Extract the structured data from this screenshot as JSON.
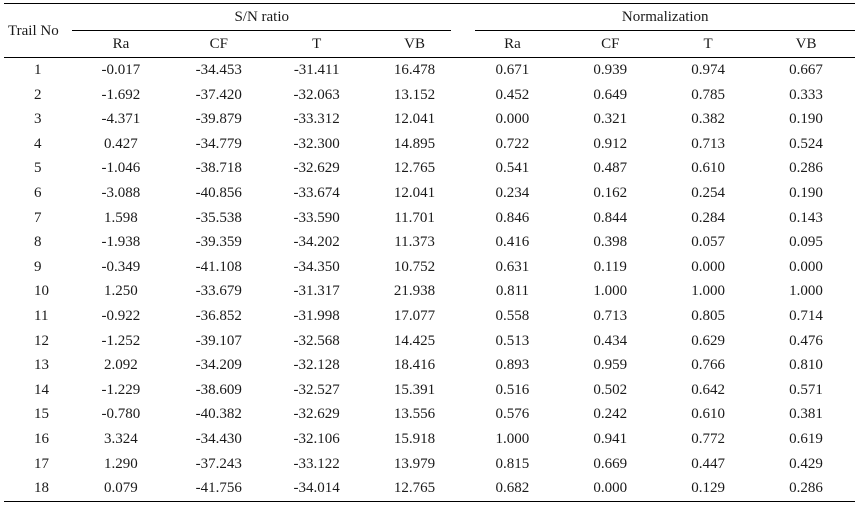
{
  "table": {
    "corner_header": "Trail No",
    "group_headers": [
      "S/N ratio",
      "Normalization"
    ],
    "sub_headers": [
      "Ra",
      "CF",
      "T",
      "VB",
      "Ra",
      "CF",
      "T",
      "VB"
    ],
    "rows": [
      [
        "1",
        "-0.017",
        "-34.453",
        "-31.411",
        "16.478",
        "0.671",
        "0.939",
        "0.974",
        "0.667"
      ],
      [
        "2",
        "-1.692",
        "-37.420",
        "-32.063",
        "13.152",
        "0.452",
        "0.649",
        "0.785",
        "0.333"
      ],
      [
        "3",
        "-4.371",
        "-39.879",
        "-33.312",
        "12.041",
        "0.000",
        "0.321",
        "0.382",
        "0.190"
      ],
      [
        "4",
        "0.427",
        "-34.779",
        "-32.300",
        "14.895",
        "0.722",
        "0.912",
        "0.713",
        "0.524"
      ],
      [
        "5",
        "-1.046",
        "-38.718",
        "-32.629",
        "12.765",
        "0.541",
        "0.487",
        "0.610",
        "0.286"
      ],
      [
        "6",
        "-3.088",
        "-40.856",
        "-33.674",
        "12.041",
        "0.234",
        "0.162",
        "0.254",
        "0.190"
      ],
      [
        "7",
        "1.598",
        "-35.538",
        "-33.590",
        "11.701",
        "0.846",
        "0.844",
        "0.284",
        "0.143"
      ],
      [
        "8",
        "-1.938",
        "-39.359",
        "-34.202",
        "11.373",
        "0.416",
        "0.398",
        "0.057",
        "0.095"
      ],
      [
        "9",
        "-0.349",
        "-41.108",
        "-34.350",
        "10.752",
        "0.631",
        "0.119",
        "0.000",
        "0.000"
      ],
      [
        "10",
        "1.250",
        "-33.679",
        "-31.317",
        "21.938",
        "0.811",
        "1.000",
        "1.000",
        "1.000"
      ],
      [
        "11",
        "-0.922",
        "-36.852",
        "-31.998",
        "17.077",
        "0.558",
        "0.713",
        "0.805",
        "0.714"
      ],
      [
        "12",
        "-1.252",
        "-39.107",
        "-32.568",
        "14.425",
        "0.513",
        "0.434",
        "0.629",
        "0.476"
      ],
      [
        "13",
        "2.092",
        "-34.209",
        "-32.128",
        "18.416",
        "0.893",
        "0.959",
        "0.766",
        "0.810"
      ],
      [
        "14",
        "-1.229",
        "-38.609",
        "-32.527",
        "15.391",
        "0.516",
        "0.502",
        "0.642",
        "0.571"
      ],
      [
        "15",
        "-0.780",
        "-40.382",
        "-32.629",
        "13.556",
        "0.576",
        "0.242",
        "0.610",
        "0.381"
      ],
      [
        "16",
        "3.324",
        "-34.430",
        "-32.106",
        "15.918",
        "1.000",
        "0.941",
        "0.772",
        "0.619"
      ],
      [
        "17",
        "1.290",
        "-37.243",
        "-33.122",
        "13.979",
        "0.815",
        "0.669",
        "0.447",
        "0.429"
      ],
      [
        "18",
        "0.079",
        "-41.756",
        "-34.014",
        "12.765",
        "0.682",
        "0.000",
        "0.129",
        "0.286"
      ]
    ]
  }
}
